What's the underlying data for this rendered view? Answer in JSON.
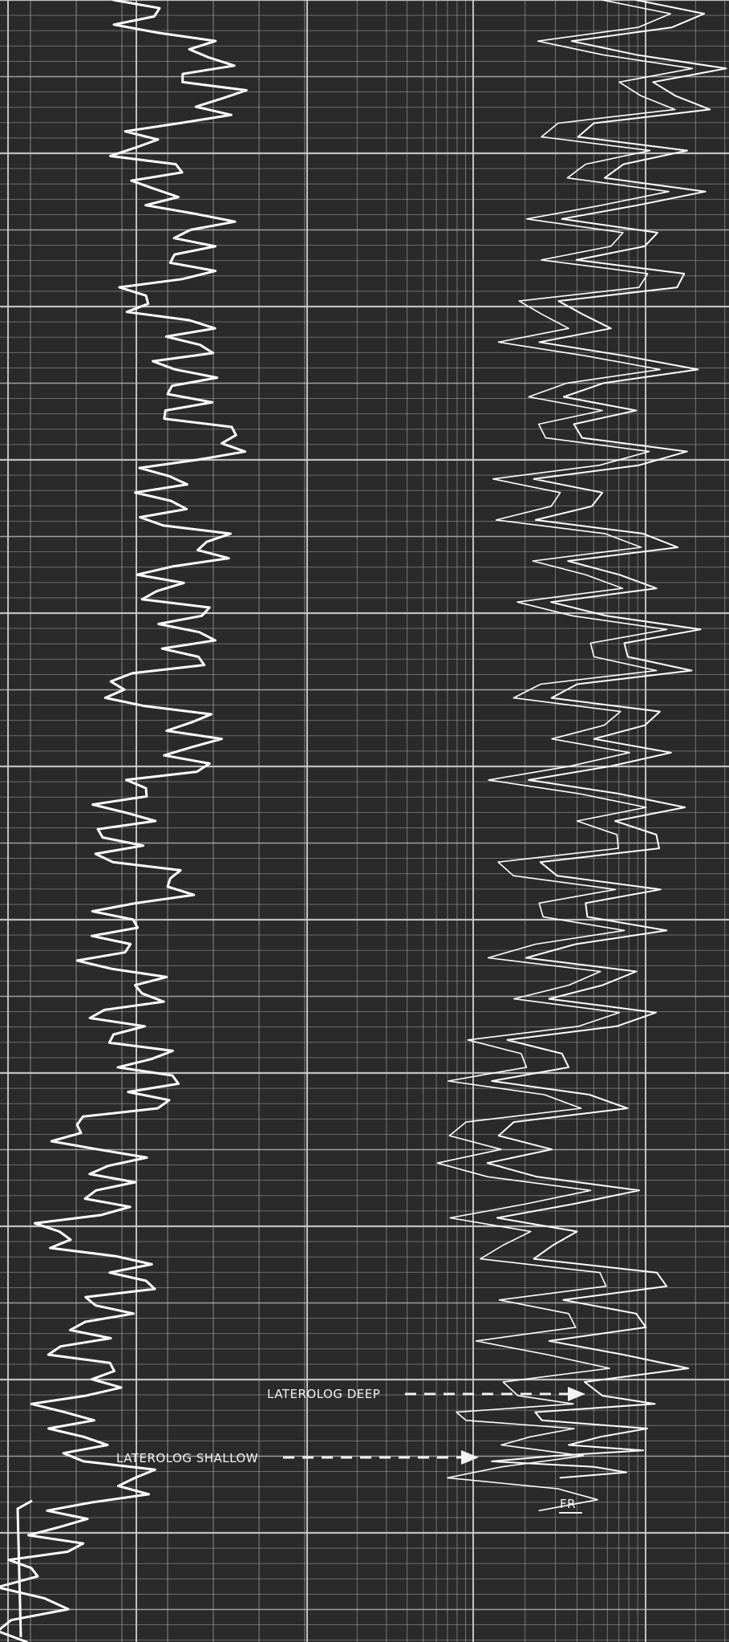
{
  "chart_data": {
    "type": "line",
    "title": "",
    "xlabel": "",
    "ylabel": "",
    "grid": true,
    "background_color": "#2a2a2a",
    "grid_color": "#d0d0d0",
    "curve_color": "#ffffff",
    "annotations": [
      {
        "name": "laterolog-deep-label",
        "text": "LATEROLOG DEEP"
      },
      {
        "name": "laterolog-shallow-label",
        "text": "LATEROLOG SHALLOW"
      },
      {
        "name": "fr-label",
        "text": "FR"
      }
    ],
    "series": [
      {
        "id": "left-track-curve",
        "note": "relative positions across track 1 (0 = left edge, 1 = right edge), sampled top to bottom",
        "depth": [
          0,
          0.03,
          0.06,
          0.09,
          0.12,
          0.15,
          0.18,
          0.21,
          0.24,
          0.27,
          0.3,
          0.33,
          0.36,
          0.39,
          0.42,
          0.45,
          0.48,
          0.51,
          0.54,
          0.57,
          0.6,
          0.63,
          0.66,
          0.69,
          0.72,
          0.75,
          0.78,
          0.81,
          0.84,
          0.87,
          0.9,
          0.93,
          0.96,
          1.0
        ],
        "values": [
          0.45,
          0.8,
          0.95,
          0.55,
          0.75,
          0.92,
          0.6,
          0.85,
          0.7,
          0.95,
          0.55,
          0.88,
          0.65,
          0.92,
          0.5,
          0.95,
          0.6,
          0.4,
          0.7,
          0.35,
          0.55,
          0.45,
          0.75,
          0.3,
          0.55,
          0.2,
          0.6,
          0.25,
          0.35,
          0.15,
          0.55,
          0.2,
          0.1,
          0.05
        ]
      },
      {
        "id": "laterolog-deep",
        "depth": [
          0.0,
          0.05,
          0.1,
          0.15,
          0.2,
          0.25,
          0.3,
          0.35,
          0.4,
          0.45,
          0.5,
          0.55,
          0.6,
          0.65,
          0.7,
          0.75,
          0.8,
          0.85,
          0.88,
          0.9
        ],
        "values": [
          0.78,
          0.82,
          0.75,
          0.8,
          0.72,
          0.78,
          0.7,
          0.74,
          0.76,
          0.68,
          0.73,
          0.66,
          0.7,
          0.62,
          0.58,
          0.64,
          0.78,
          0.7,
          0.62,
          0.6
        ]
      },
      {
        "id": "laterolog-shallow",
        "depth": [
          0.0,
          0.05,
          0.1,
          0.15,
          0.2,
          0.25,
          0.3,
          0.35,
          0.4,
          0.45,
          0.5,
          0.55,
          0.6,
          0.65,
          0.7,
          0.75,
          0.8,
          0.85,
          0.88,
          0.92
        ],
        "values": [
          0.7,
          0.74,
          0.66,
          0.72,
          0.62,
          0.7,
          0.6,
          0.66,
          0.68,
          0.58,
          0.64,
          0.55,
          0.62,
          0.52,
          0.46,
          0.53,
          0.62,
          0.5,
          0.46,
          0.55
        ]
      }
    ]
  }
}
